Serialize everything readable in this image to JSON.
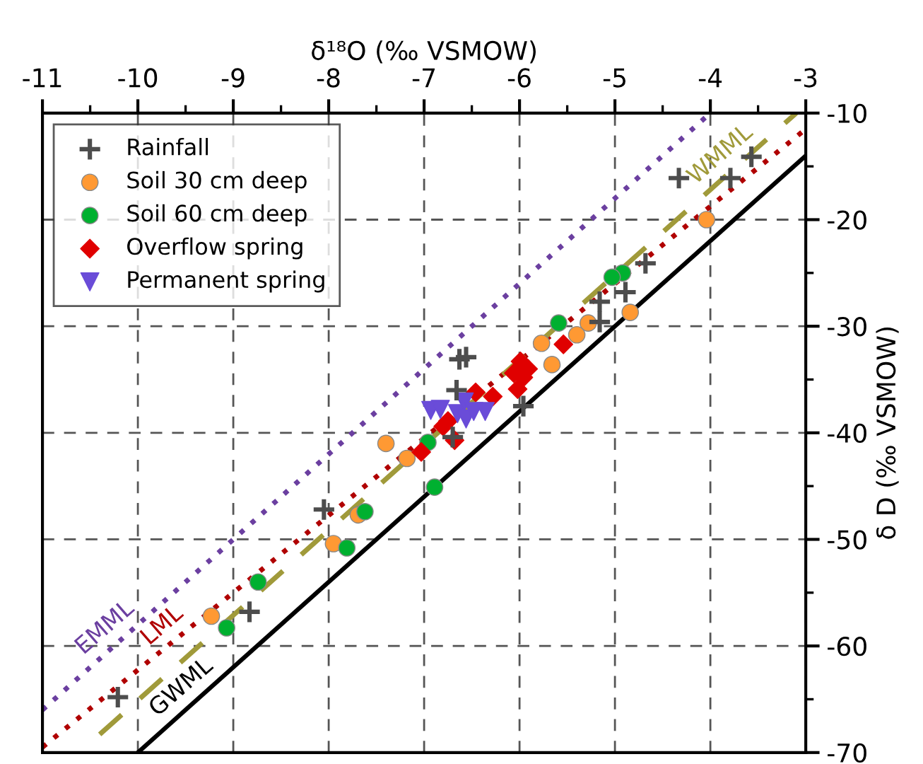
{
  "chart_data": {
    "type": "scatter",
    "xlabel": "δ¹⁸O (‰ VSMOW)",
    "ylabel": "δ D (‰ VSMOW)",
    "xlim": [
      -11,
      -3
    ],
    "ylim": [
      -70,
      -10
    ],
    "xticks": [
      -11,
      -10,
      -9,
      -8,
      -7,
      -6,
      -5,
      -4,
      -3,
      {
        "value": -10.5,
        "label": null
      },
      {
        "value": -9.5,
        "label": null
      },
      {
        "value": -8.5,
        "label": null
      },
      {
        "value": -7.5,
        "label": null
      },
      {
        "value": -6.5,
        "label": null
      },
      {
        "value": -5.5,
        "label": null
      },
      {
        "value": -4.5,
        "label": null
      },
      {
        "value": -3.5,
        "label": null
      }
    ],
    "yticks": [
      -10,
      -20,
      -30,
      -40,
      -50,
      -60,
      -70,
      {
        "value": -15,
        "label": null
      },
      {
        "value": -25,
        "label": null
      },
      {
        "value": -35,
        "label": null
      },
      {
        "value": -45,
        "label": null
      },
      {
        "value": -55,
        "label": null
      },
      {
        "value": -65,
        "label": null
      }
    ],
    "grid": true,
    "legend": "top left",
    "series": [
      {
        "type": "line",
        "color": "#6b3fa0",
        "line_style": "dotted",
        "x": [
          -11,
          -4
        ],
        "values": [
          -66,
          -10
        ]
      },
      {
        "type": "line",
        "color": "#b00000",
        "line_style": "dotted",
        "x": [
          -11,
          -3
        ],
        "values": [
          -69.5,
          -11.5
        ]
      },
      {
        "type": "line",
        "color": "#a09a3a",
        "line_style": "dashed",
        "x": [
          -10.4,
          -3.1
        ],
        "values": [
          -68.3,
          -10
        ]
      },
      {
        "type": "line",
        "color": "#000000",
        "line_style": "solid",
        "x": [
          -10,
          -3
        ],
        "values": [
          -70,
          -14
        ]
      },
      {
        "name": "Rainfall",
        "marker": "cross",
        "color": "#4d4d4d",
        "x": [
          -3.57,
          -4.33,
          -3.79,
          -4.68,
          -4.89,
          -5.16,
          -5.16,
          -6.63,
          -6.56,
          -6.66,
          -5.96,
          -6.7,
          -8.05,
          -8.83,
          -10.21
        ],
        "values": [
          -14.1,
          -16.1,
          -16.1,
          -24.1,
          -26.8,
          -27.7,
          -29.6,
          -33.1,
          -32.9,
          -36,
          -37.5,
          -40.4,
          -47.2,
          -56.8,
          -64.8
        ]
      },
      {
        "name": "Soil 30 cm deep",
        "marker": "circle",
        "color": "#ff9933",
        "x": [
          -4.04,
          -4.84,
          -5.28,
          -5.4,
          -5.77,
          -5.66,
          -7.18,
          -7.4,
          -7.69,
          -7.95,
          -9.23
        ],
        "values": [
          -20,
          -28.7,
          -29.7,
          -30.8,
          -31.6,
          -33.6,
          -42.4,
          -41,
          -47.7,
          -50.4,
          -57.2
        ]
      },
      {
        "name": "Soil 60 cm deep",
        "marker": "circle",
        "color": "#00b030",
        "x": [
          -4.92,
          -5.03,
          -5.59,
          -6.96,
          -6.89,
          -7.62,
          -7.81,
          -8.74,
          -9.07
        ],
        "values": [
          -25,
          -25.4,
          -29.7,
          -40.9,
          -45.1,
          -47.4,
          -50.8,
          -54,
          -58.3
        ]
      },
      {
        "name": "Overflow spring",
        "marker": "diamond",
        "color": "#e00000",
        "x": [
          -5.54,
          -5.99,
          -5.91,
          -6.06,
          -5.96,
          -6.02,
          -6.28,
          -6.46,
          -6.75,
          -6.8,
          -6.68,
          -7.03
        ],
        "values": [
          -31.7,
          -33.3,
          -34,
          -34.4,
          -34.8,
          -35.9,
          -36.6,
          -36.2,
          -38.9,
          -39.4,
          -40.7,
          -41.8
        ]
      },
      {
        "name": "Permanent spring",
        "marker": "triangle",
        "color": "#6a4cd8",
        "x": [
          -6.93,
          -6.83,
          -6.65,
          -6.58,
          -6.56,
          -6.48,
          -6.36
        ],
        "values": [
          -37.9,
          -37.8,
          -38.2,
          -37.1,
          -38.7,
          -38,
          -38
        ]
      }
    ],
    "annotations": [
      {
        "text": "EMML",
        "x": -10.2,
        "y": -59.6
      },
      {
        "text": "LML",
        "x": -9.6,
        "y": -59.4
      },
      {
        "text": "WMML",
        "x": -3.75,
        "y": -15.2
      },
      {
        "text": "GWML",
        "x": -9.4,
        "y": -65.2
      }
    ]
  }
}
